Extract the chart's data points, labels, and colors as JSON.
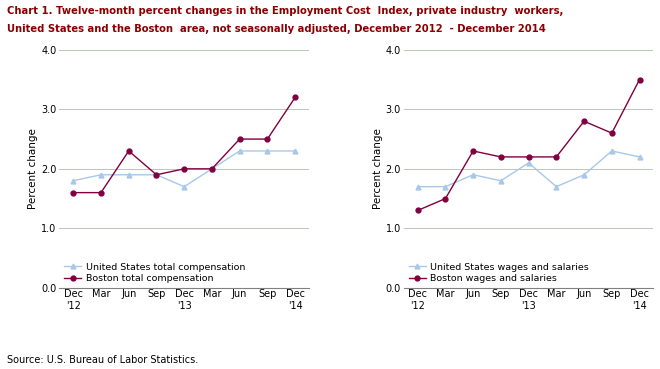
{
  "title_line1": "Chart 1. Twelve-month percent changes in the Employment Cost  Index, private industry  workers,",
  "title_line2": "United States and the Boston  area, not seasonally adjusted, December 2012  - December 2014",
  "source": "Source: U.S. Bureau of Labor Statistics.",
  "x_labels_top": [
    "Dec",
    "Mar",
    "Jun",
    "Sep",
    "Dec",
    "Mar",
    "Jun",
    "Sep",
    "Dec"
  ],
  "x_labels_bot": [
    "'12",
    "",
    "",
    "",
    "'13",
    "",
    "",
    "",
    "'14"
  ],
  "ylabel": "Percent change",
  "ylim": [
    0.0,
    4.0
  ],
  "yticks": [
    0.0,
    1.0,
    2.0,
    3.0,
    4.0
  ],
  "left_us": [
    1.8,
    1.9,
    1.9,
    1.9,
    1.7,
    2.0,
    2.3,
    2.3,
    2.3
  ],
  "left_boston": [
    1.6,
    1.6,
    2.3,
    1.9,
    2.0,
    2.0,
    2.5,
    2.5,
    3.2
  ],
  "left_legend_us": "United States total compensation",
  "left_legend_boston": "Boston total compensation",
  "right_us": [
    1.7,
    1.7,
    1.9,
    1.8,
    2.1,
    1.7,
    1.9,
    2.3,
    2.2
  ],
  "right_boston": [
    1.3,
    1.5,
    2.3,
    2.2,
    2.2,
    2.2,
    2.8,
    2.6,
    3.5
  ],
  "right_legend_us": "United States wages and salaries",
  "right_legend_boston": "Boston wages and salaries",
  "us_color": "#a8c8e8",
  "boston_color": "#800040",
  "title_color": "#8B0000",
  "source_color": "#000000",
  "grid_color": "#b8c8b8"
}
